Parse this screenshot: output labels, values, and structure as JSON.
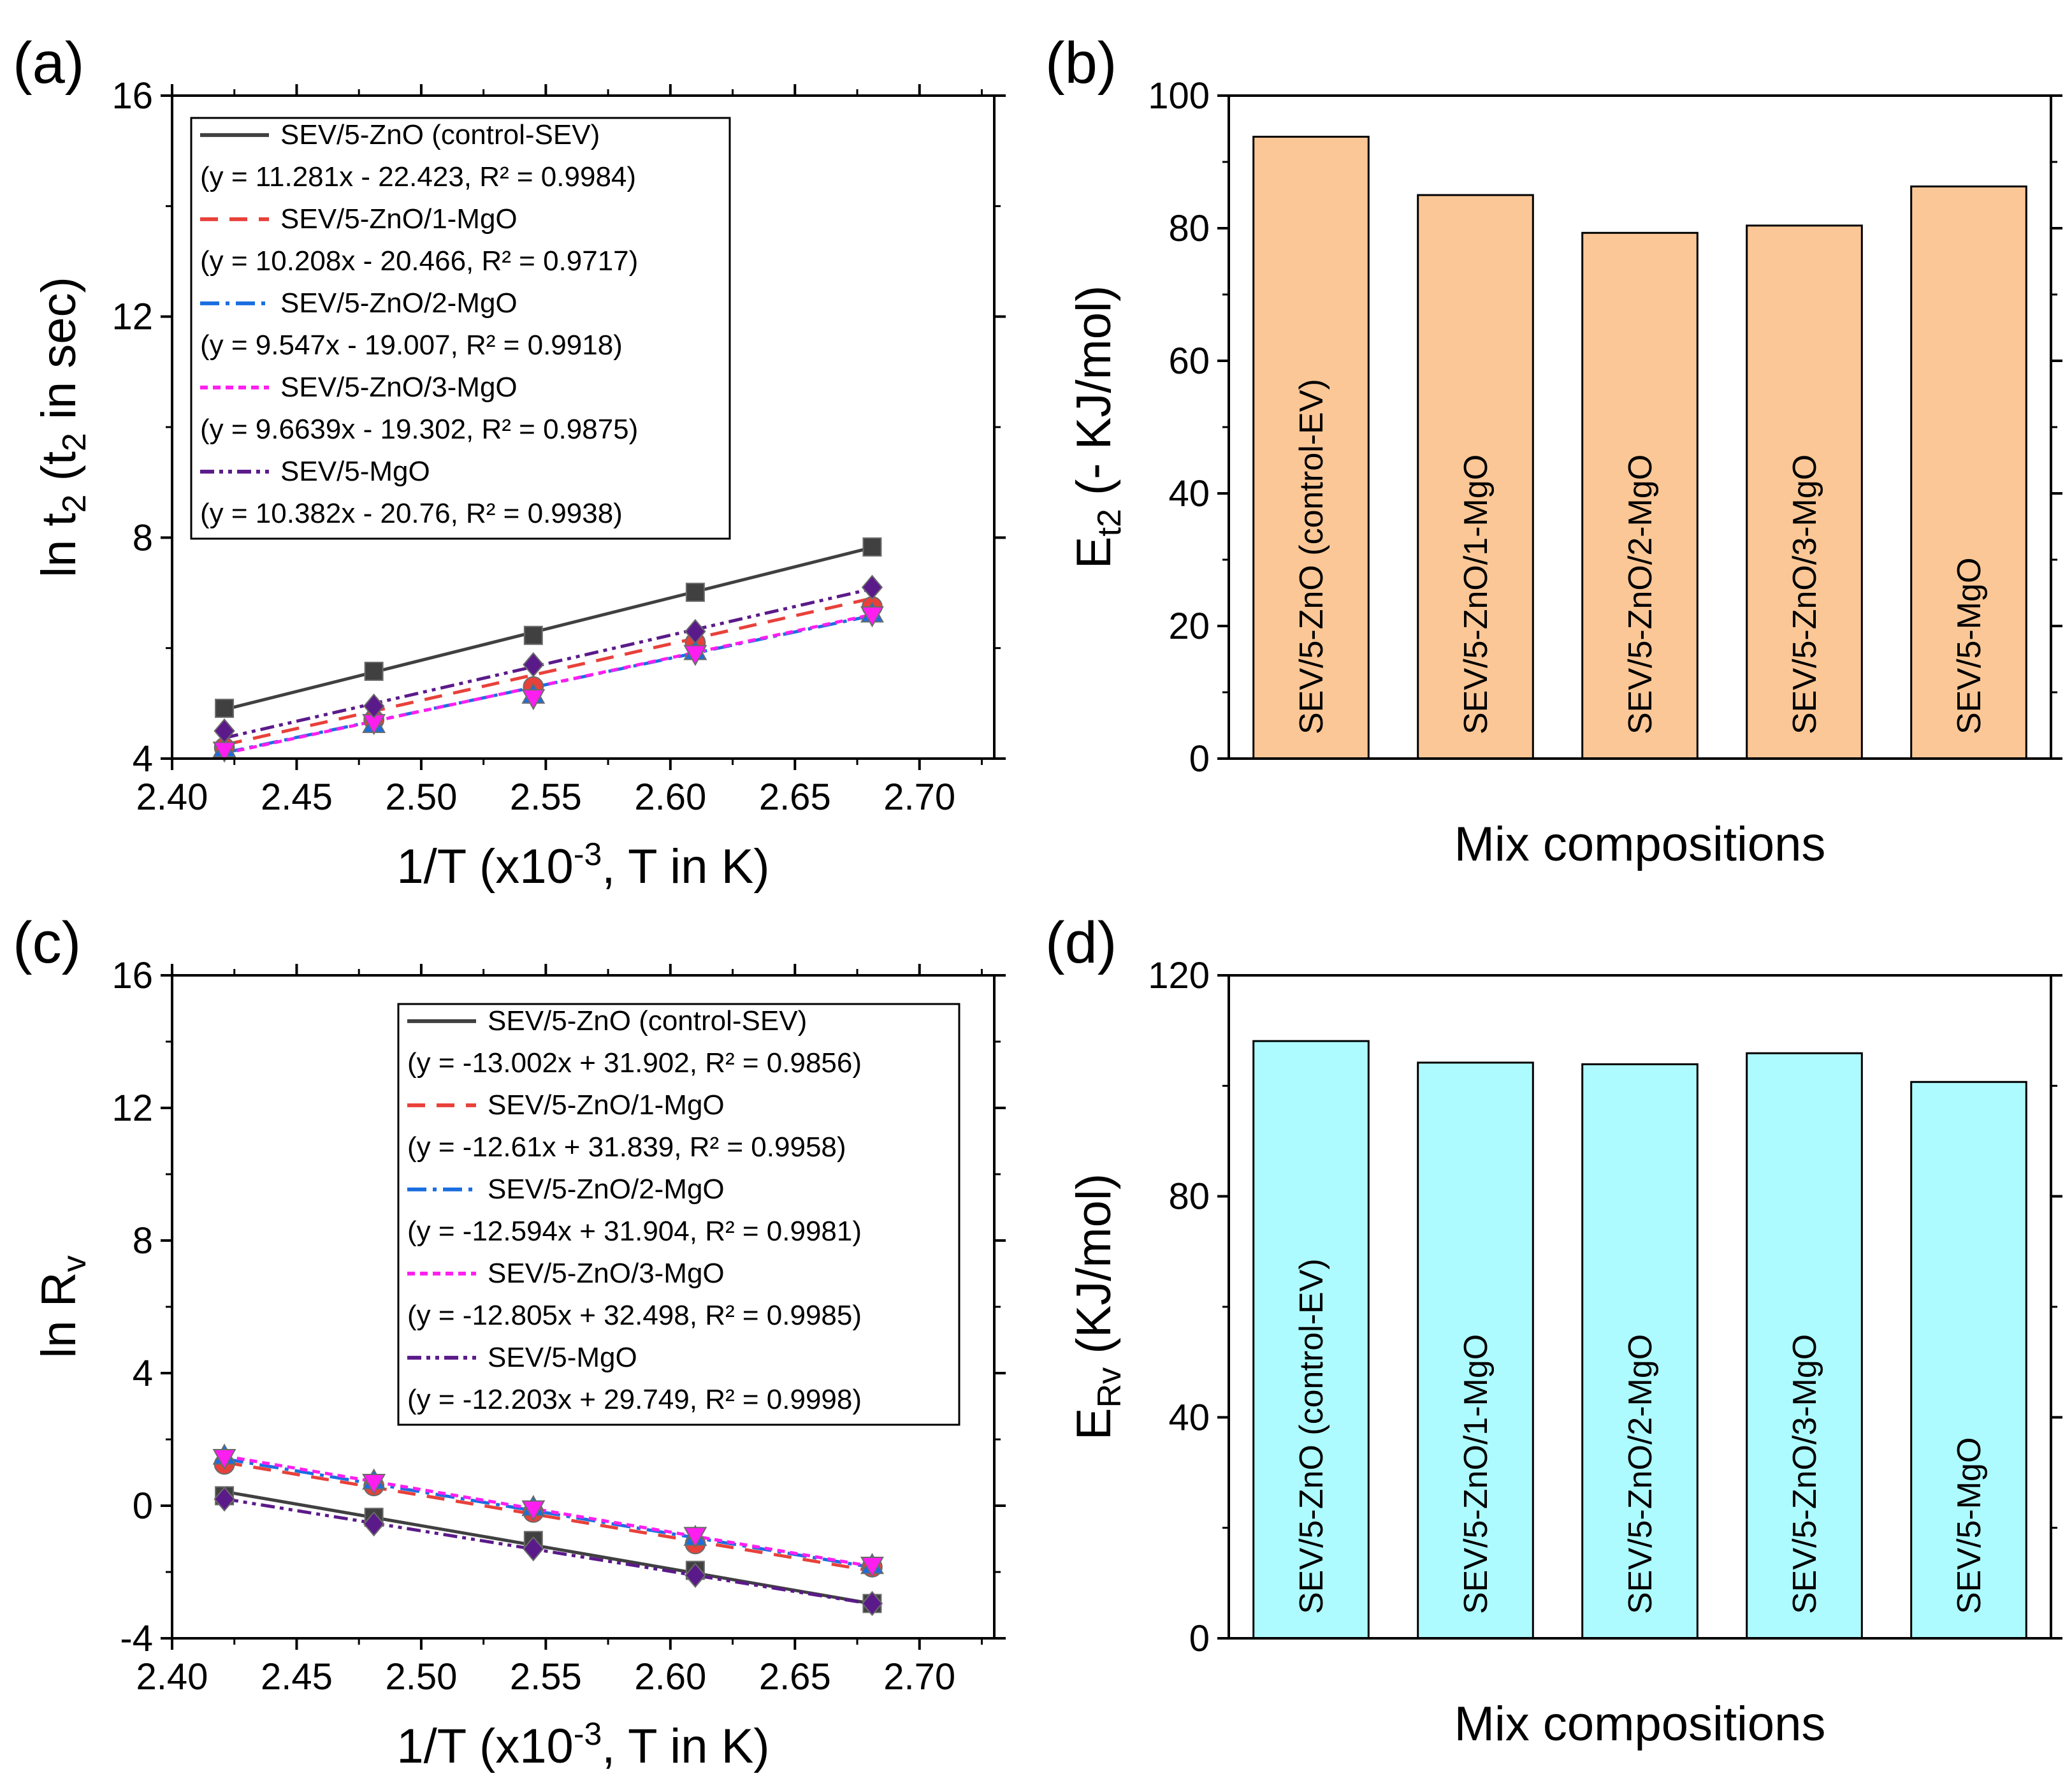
{
  "chart_data": [
    {
      "id": "a",
      "type": "scatter",
      "panel_label": "(a)",
      "title": "",
      "xlabel": {
        "main": "1/T (x10",
        "sup": "-3",
        "rest": ", T in K)"
      },
      "ylabel": {
        "main": "ln t",
        "sub": "2",
        "mid": " (t",
        "sub2": "2",
        "rest": " in sec)"
      },
      "xlim": [
        2.4,
        2.73
      ],
      "ylim": [
        4,
        16
      ],
      "xticks": [
        "2.40",
        "2.45",
        "2.50",
        "2.55",
        "2.60",
        "2.65",
        "2.70"
      ],
      "yticks": [
        "4",
        "8",
        "12",
        "16"
      ],
      "x": [
        2.421,
        2.481,
        2.545,
        2.61,
        2.681
      ],
      "legend_position": "top-left",
      "series": [
        {
          "name": "SEV/5-ZnO (control-SEV)",
          "equation": "(y = 11.281x - 22.423, R² = 0.9984)",
          "color": "#404040",
          "marker": "square",
          "dash": "",
          "values": [
            4.91,
            5.58,
            6.23,
            7.01,
            7.83
          ],
          "fit": [
            11.281,
            -22.423
          ]
        },
        {
          "name": "SEV/5-ZnO/1-MgO",
          "equation": "(y = 10.208x - 20.466, R² = 0.9717)",
          "color": "#e8413a",
          "marker": "circle",
          "dash": "28,18",
          "values": [
            4.2,
            4.7,
            5.3,
            6.1,
            6.75
          ],
          "fit": [
            10.208,
            -20.466
          ]
        },
        {
          "name": "SEV/5-ZnO/2-MgO",
          "equation": "(y = 9.547x - 19.007, R² = 0.9918)",
          "color": "#1a6ee0",
          "marker": "triangle-up",
          "dash": "30,10,6,10",
          "values": [
            4.18,
            4.62,
            5.15,
            5.94,
            6.62
          ],
          "fit": [
            9.547,
            -19.007
          ]
        },
        {
          "name": "SEV/5-ZnO/3-MgO",
          "equation": "(y = 9.6639x - 19.302, R² = 0.9875)",
          "color": "#ff1ef0",
          "marker": "triangle-down",
          "dash": "12,8",
          "values": [
            4.15,
            4.65,
            5.1,
            5.9,
            6.6
          ],
          "fit": [
            9.6639,
            -19.302
          ]
        },
        {
          "name": "SEV/5-MgO",
          "equation": "(y = 10.382x - 20.76, R² = 0.9938)",
          "color": "#5b1a8a",
          "marker": "diamond",
          "dash": "22,8,6,8,6,8",
          "values": [
            4.5,
            4.95,
            5.7,
            6.3,
            7.1
          ],
          "fit": [
            10.382,
            -20.76
          ]
        }
      ]
    },
    {
      "id": "b",
      "type": "bar",
      "panel_label": "(b)",
      "title": "",
      "xlabel": "Mix compositions",
      "ylabel": {
        "main": "E",
        "sub": "t2",
        "rest": " (- KJ/mol)"
      },
      "ylim": [
        0,
        100
      ],
      "yticks": [
        "0",
        "20",
        "40",
        "60",
        "80",
        "100"
      ],
      "bar_color": "#fbc796",
      "categories": [
        "SEV/5-ZnO (control-EV)",
        "SEV/5-ZnO/1-MgO",
        "SEV/5-ZnO/2-MgO",
        "SEV/5-ZnO/3-MgO",
        "SEV/5-MgO"
      ],
      "values": [
        93.8,
        85.0,
        79.3,
        80.4,
        86.3
      ]
    },
    {
      "id": "c",
      "type": "scatter",
      "panel_label": "(c)",
      "title": "",
      "xlabel": {
        "main": "1/T (x10",
        "sup": "-3",
        "rest": ", T in K)"
      },
      "ylabel": {
        "main": "ln R",
        "sub": "v"
      },
      "xlim": [
        2.4,
        2.73
      ],
      "ylim": [
        -4,
        16
      ],
      "xticks": [
        "2.40",
        "2.45",
        "2.50",
        "2.55",
        "2.60",
        "2.65",
        "2.70"
      ],
      "yticks": [
        "-4",
        "0",
        "4",
        "8",
        "12",
        "16"
      ],
      "x": [
        2.421,
        2.481,
        2.545,
        2.61,
        2.681
      ],
      "legend_position": "top-right",
      "series": [
        {
          "name": "SEV/5-ZnO (control-SEV)",
          "equation": "(y = -13.002x + 31.902, R² = 0.9856)",
          "color": "#404040",
          "marker": "square",
          "dash": "",
          "values": [
            0.3,
            -0.35,
            -1.05,
            -1.95,
            -2.95
          ],
          "fit": [
            -13.002,
            31.902
          ]
        },
        {
          "name": "SEV/5-ZnO/1-MgO",
          "equation": "(y = -12.61x + 31.839, R² = 0.9958)",
          "color": "#e8413a",
          "marker": "circle",
          "dash": "28,18",
          "values": [
            1.25,
            0.6,
            -0.2,
            -1.15,
            -1.85
          ],
          "fit": [
            -12.61,
            31.839
          ]
        },
        {
          "name": "SEV/5-ZnO/2-MgO",
          "equation": "(y = -12.594x + 31.904, R² = 0.9981)",
          "color": "#1a6ee0",
          "marker": "triangle-up",
          "dash": "30,10,6,10",
          "values": [
            1.5,
            0.75,
            -0.05,
            -0.95,
            -1.8
          ],
          "fit": [
            -12.594,
            31.904
          ]
        },
        {
          "name": "SEV/5-ZnO/3-MgO",
          "equation": "(y = -12.805x + 32.498, R² = 0.9985)",
          "color": "#ff1ef0",
          "marker": "triangle-down",
          "dash": "12,8",
          "values": [
            1.45,
            0.7,
            -0.1,
            -0.9,
            -1.8
          ],
          "fit": [
            -12.805,
            32.498
          ]
        },
        {
          "name": "SEV/5-MgO",
          "equation": "(y = -12.203x + 29.749, R² = 0.9998)",
          "color": "#5b1a8a",
          "marker": "diamond",
          "dash": "22,8,6,8,6,8",
          "values": [
            0.2,
            -0.55,
            -1.3,
            -2.1,
            -2.95
          ],
          "fit": [
            -12.203,
            29.749
          ]
        }
      ]
    },
    {
      "id": "d",
      "type": "bar",
      "panel_label": "(d)",
      "title": "",
      "xlabel": "Mix compositions",
      "ylabel": {
        "main": "E",
        "sub": "Rv",
        "rest": " (KJ/mol)"
      },
      "ylim": [
        0,
        120
      ],
      "yticks": [
        "0",
        "40",
        "80",
        "120"
      ],
      "bar_color": "#aefbff",
      "categories": [
        "SEV/5-ZnO (control-EV)",
        "SEV/5-ZnO/1-MgO",
        "SEV/5-ZnO/2-MgO",
        "SEV/5-ZnO/3-MgO",
        "SEV/5-MgO"
      ],
      "values": [
        108.1,
        104.2,
        103.9,
        105.9,
        100.7
      ]
    }
  ]
}
